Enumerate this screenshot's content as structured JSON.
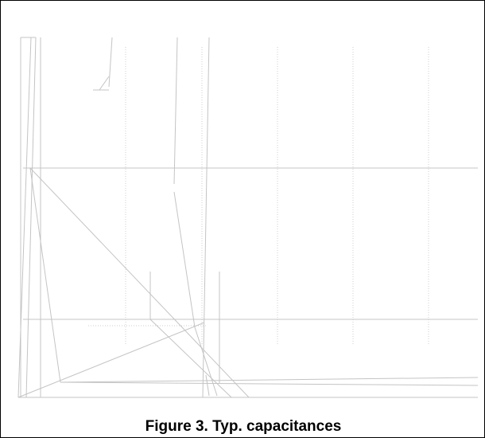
{
  "figure": {
    "caption": "Figure 3. Typ. capacitances"
  },
  "chart_data": {
    "type": "line",
    "title": "",
    "xlabel": "",
    "ylabel": "",
    "grid": true,
    "series": []
  },
  "colors": {
    "line": "#c4c4c4",
    "grid": "#cfcfcf",
    "frame": "#000000",
    "text": "#000000"
  }
}
